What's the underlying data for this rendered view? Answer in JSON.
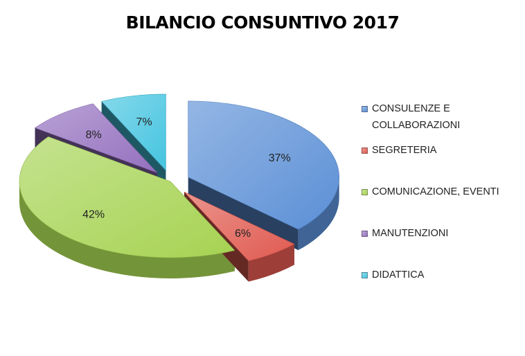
{
  "chart_data": {
    "type": "pie",
    "title": "BILANCIO CONSUNTIVO 2017",
    "slices": [
      {
        "name": "CONSULENZE E COLLABORAZIONI",
        "value": 37,
        "label": "37%",
        "color": "#5b8fd6"
      },
      {
        "name": "SEGRETERIA",
        "value": 6,
        "label": "6%",
        "color": "#e05a50"
      },
      {
        "name": "COMUNICAZIONE, EVENTI",
        "value": 42,
        "label": "42%",
        "color": "#a6d352"
      },
      {
        "name": "MANUTENZIONI",
        "value": 8,
        "label": "8%",
        "color": "#9470bf"
      },
      {
        "name": "DIDATTICA",
        "value": 7,
        "label": "7%",
        "color": "#45c4e0"
      }
    ],
    "legend": "right",
    "exploded": true,
    "three_d": true
  }
}
